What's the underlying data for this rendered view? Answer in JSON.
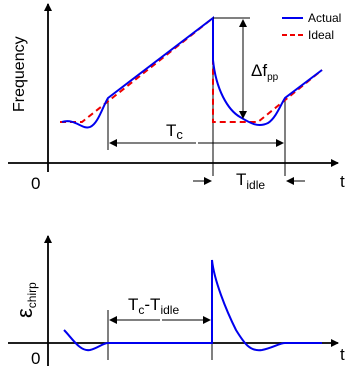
{
  "top_plot": {
    "ylabel": "Frequency",
    "origin": "0",
    "x_axis_end_label": "t",
    "legend": [
      {
        "label": "Actual",
        "color": "#0000ee",
        "style": "solid"
      },
      {
        "label": "Ideal",
        "color": "#ee0000",
        "style": "dashed"
      }
    ],
    "delta_label": "Δf",
    "delta_sub": "pp",
    "tc_label": "T",
    "tc_sub": "c",
    "tidle_label": "T",
    "tidle_sub": "idle"
  },
  "bottom_plot": {
    "ylabel": "ε",
    "ylabel_sub": "chirp",
    "origin": "0",
    "x_axis_end_label": "t",
    "span_t": "T",
    "span_c": "c",
    "span_dash": "-T",
    "span_idle": "idle"
  },
  "colors": {
    "actual": "#0000ee",
    "ideal": "#ee0000",
    "axis": "#000000"
  }
}
